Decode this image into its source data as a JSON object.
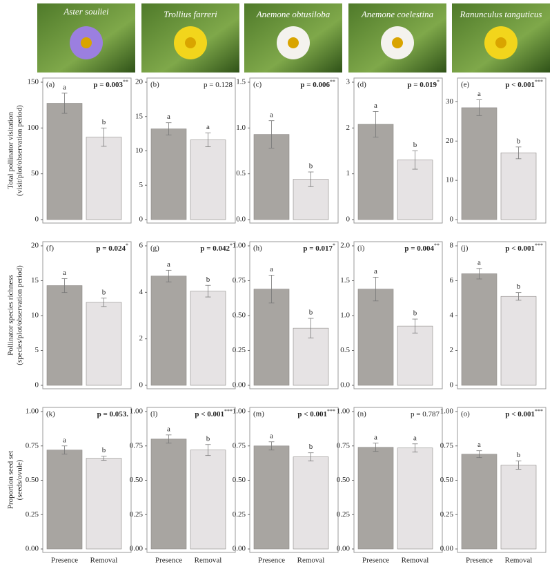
{
  "photos": [
    {
      "caption": "Aster souliei"
    },
    {
      "caption": "Trollius farreri"
    },
    {
      "caption": "Anemone obtusiloba"
    },
    {
      "caption": "Anemone coelestina"
    },
    {
      "caption": "Ranunculus tanguticus"
    }
  ],
  "row_labels": [
    [
      "Total pollinator visitation",
      "(visit/plot/observation period)"
    ],
    [
      "Pollinator species richness",
      "(species/plot/observation period)"
    ],
    [
      "Proportion seed set",
      "(seeds/ovule)"
    ]
  ],
  "chart_data": [
    {
      "type": "bar",
      "panel": "(a)",
      "p_text": "p = 0.003",
      "p_bold": true,
      "stars": "**",
      "categories": [
        null,
        null
      ],
      "values": [
        127,
        90
      ],
      "errors": [
        11,
        10
      ],
      "letters": [
        "a",
        "b"
      ],
      "colors": [
        "#a8a5a1",
        "#e6e3e4"
      ],
      "ylim": [
        0,
        150
      ],
      "yticks": [
        0,
        50,
        100,
        150
      ]
    },
    {
      "type": "bar",
      "panel": "(b)",
      "p_text": "p = 0.128",
      "p_bold": false,
      "stars": null,
      "categories": [
        null,
        null
      ],
      "values": [
        13.2,
        11.6
      ],
      "errors": [
        0.9,
        1.0
      ],
      "letters": [
        "a",
        "a"
      ],
      "colors": [
        "#a8a5a1",
        "#e6e3e4"
      ],
      "ylim": [
        0,
        20
      ],
      "yticks": [
        0,
        5,
        10,
        15,
        20
      ]
    },
    {
      "type": "bar",
      "panel": "(c)",
      "p_text": "p = 0.006",
      "p_bold": true,
      "stars": "**",
      "categories": [
        null,
        null
      ],
      "values": [
        0.93,
        0.44
      ],
      "errors": [
        0.15,
        0.08
      ],
      "letters": [
        "a",
        "b"
      ],
      "colors": [
        "#a8a5a1",
        "#e6e3e4"
      ],
      "ylim": [
        0,
        1.5
      ],
      "yticks": [
        {
          "value": 0,
          "label": "0.0"
        },
        0.5,
        {
          "value": 1,
          "label": "1.0"
        },
        1.5
      ]
    },
    {
      "type": "bar",
      "panel": "(d)",
      "p_text": "p = 0.019",
      "p_bold": true,
      "stars": "*",
      "categories": [
        null,
        null
      ],
      "values": [
        2.08,
        1.3
      ],
      "errors": [
        0.28,
        0.2
      ],
      "letters": [
        "a",
        "b"
      ],
      "colors": [
        "#a8a5a1",
        "#e6e3e4"
      ],
      "ylim": [
        0,
        3
      ],
      "yticks": [
        0,
        1,
        2,
        3
      ]
    },
    {
      "type": "bar",
      "panel": "(e)",
      "p_text": "p < 0.001",
      "p_bold": true,
      "stars": "***",
      "categories": [
        null,
        null
      ],
      "values": [
        28.5,
        17
      ],
      "errors": [
        2,
        1.5
      ],
      "letters": [
        "a",
        "b"
      ],
      "colors": [
        "#a8a5a1",
        "#e6e3e4"
      ],
      "ylim": [
        0,
        35
      ],
      "yticks": [
        0,
        10,
        20,
        30
      ]
    },
    {
      "type": "bar",
      "panel": "(f)",
      "p_text": "p = 0.024",
      "p_bold": true,
      "stars": "*",
      "categories": [
        null,
        null
      ],
      "values": [
        14.3,
        11.9
      ],
      "errors": [
        1,
        0.6
      ],
      "letters": [
        "a",
        "b"
      ],
      "colors": [
        "#a8a5a1",
        "#e6e3e4"
      ],
      "ylim": [
        0,
        20
      ],
      "yticks": [
        0,
        5,
        10,
        15,
        20
      ]
    },
    {
      "type": "bar",
      "panel": "(g)",
      "p_text": "p = 0.042",
      "p_bold": true,
      "stars": "*",
      "categories": [
        null,
        null
      ],
      "values": [
        4.7,
        4.05
      ],
      "errors": [
        0.25,
        0.25
      ],
      "letters": [
        "a",
        "b"
      ],
      "colors": [
        "#a8a5a1",
        "#e6e3e4"
      ],
      "ylim": [
        0,
        6
      ],
      "yticks": [
        0,
        2,
        4,
        6
      ]
    },
    {
      "type": "bar",
      "panel": "(h)",
      "p_text": "p = 0.017",
      "p_bold": true,
      "stars": "*",
      "categories": [
        null,
        null
      ],
      "values": [
        0.69,
        0.41
      ],
      "errors": [
        0.1,
        0.07
      ],
      "letters": [
        "a",
        "b"
      ],
      "colors": [
        "#a8a5a1",
        "#e6e3e4"
      ],
      "ylim": [
        0,
        1
      ],
      "yticks": [
        {
          "value": 0,
          "label": "0.00"
        },
        0.25,
        {
          "value": 0.5,
          "label": "0.50"
        },
        0.75,
        {
          "value": 1,
          "label": "1.00"
        }
      ]
    },
    {
      "type": "bar",
      "panel": "(i)",
      "p_text": "p = 0.004",
      "p_bold": true,
      "stars": "**",
      "categories": [
        null,
        null
      ],
      "values": [
        1.38,
        0.85
      ],
      "errors": [
        0.17,
        0.1
      ],
      "letters": [
        "a",
        "b"
      ],
      "colors": [
        "#a8a5a1",
        "#e6e3e4"
      ],
      "ylim": [
        0,
        2
      ],
      "yticks": [
        {
          "value": 0,
          "label": "0.0"
        },
        0.5,
        {
          "value": 1,
          "label": "1.0"
        },
        1.5,
        {
          "value": 2,
          "label": "2.0"
        }
      ]
    },
    {
      "type": "bar",
      "panel": "(j)",
      "p_text": "p < 0.001",
      "p_bold": true,
      "stars": "***",
      "categories": [
        null,
        null
      ],
      "values": [
        6.4,
        5.1
      ],
      "errors": [
        0.3,
        0.22
      ],
      "letters": [
        "a",
        "b"
      ],
      "colors": [
        "#a8a5a1",
        "#e6e3e4"
      ],
      "ylim": [
        0,
        8
      ],
      "yticks": [
        0,
        2,
        4,
        6,
        8
      ]
    },
    {
      "type": "bar",
      "panel": "(k)",
      "p_text": "p = 0.053.",
      "p_bold": true,
      "stars": null,
      "categories": [
        "Presence",
        "Removal"
      ],
      "values": [
        0.72,
        0.66
      ],
      "errors": [
        0.03,
        0.015
      ],
      "letters": [
        "a",
        "b"
      ],
      "colors": [
        "#a8a5a1",
        "#e6e3e4"
      ],
      "ylim": [
        0,
        1
      ],
      "yticks": [
        {
          "value": 0,
          "label": "0.00"
        },
        0.25,
        {
          "value": 0.5,
          "label": "0.50"
        },
        0.75,
        {
          "value": 1,
          "label": "1.00"
        }
      ]
    },
    {
      "type": "bar",
      "panel": "(l)",
      "p_text": "p < 0.001",
      "p_bold": true,
      "stars": "***",
      "categories": [
        "Presence",
        "Removal"
      ],
      "values": [
        0.8,
        0.72
      ],
      "errors": [
        0.03,
        0.04
      ],
      "letters": [
        "a",
        "b"
      ],
      "colors": [
        "#a8a5a1",
        "#e6e3e4"
      ],
      "ylim": [
        0,
        1
      ],
      "yticks": [
        {
          "value": 0,
          "label": "0.00"
        },
        0.25,
        {
          "value": 0.5,
          "label": "0.50"
        },
        0.75,
        {
          "value": 1,
          "label": "1.00"
        }
      ]
    },
    {
      "type": "bar",
      "panel": "(m)",
      "p_text": "p < 0.001",
      "p_bold": true,
      "stars": "***",
      "categories": [
        "Presence",
        "Removal"
      ],
      "values": [
        0.75,
        0.67
      ],
      "errors": [
        0.03,
        0.03
      ],
      "letters": [
        "a",
        "b"
      ],
      "colors": [
        "#a8a5a1",
        "#e6e3e4"
      ],
      "ylim": [
        0,
        1
      ],
      "yticks": [
        {
          "value": 0,
          "label": "0.00"
        },
        0.25,
        {
          "value": 0.5,
          "label": "0.50"
        },
        0.75,
        {
          "value": 1,
          "label": "1.00"
        }
      ]
    },
    {
      "type": "bar",
      "panel": "(n)",
      "p_text": "p = 0.787",
      "p_bold": false,
      "stars": null,
      "categories": [
        "Presence",
        "Removal"
      ],
      "values": [
        0.74,
        0.735
      ],
      "errors": [
        0.03,
        0.03
      ],
      "letters": [
        "a",
        "a"
      ],
      "colors": [
        "#a8a5a1",
        "#e6e3e4"
      ],
      "ylim": [
        0,
        1
      ],
      "yticks": [
        {
          "value": 0,
          "label": "0.00"
        },
        0.25,
        {
          "value": 0.5,
          "label": "0.50"
        },
        0.75,
        {
          "value": 1,
          "label": "1.00"
        }
      ]
    },
    {
      "type": "bar",
      "panel": "(o)",
      "p_text": "p < 0.001",
      "p_bold": true,
      "stars": "***",
      "categories": [
        "Presence",
        "Removal"
      ],
      "values": [
        0.69,
        0.61
      ],
      "errors": [
        0.025,
        0.03
      ],
      "letters": [
        "a",
        "b"
      ],
      "colors": [
        "#a8a5a1",
        "#e6e3e4"
      ],
      "ylim": [
        0,
        1
      ],
      "yticks": [
        {
          "value": 0,
          "label": "0.00"
        },
        0.25,
        {
          "value": 0.5,
          "label": "0.50"
        },
        0.75,
        {
          "value": 1,
          "label": "1.00"
        }
      ]
    }
  ]
}
